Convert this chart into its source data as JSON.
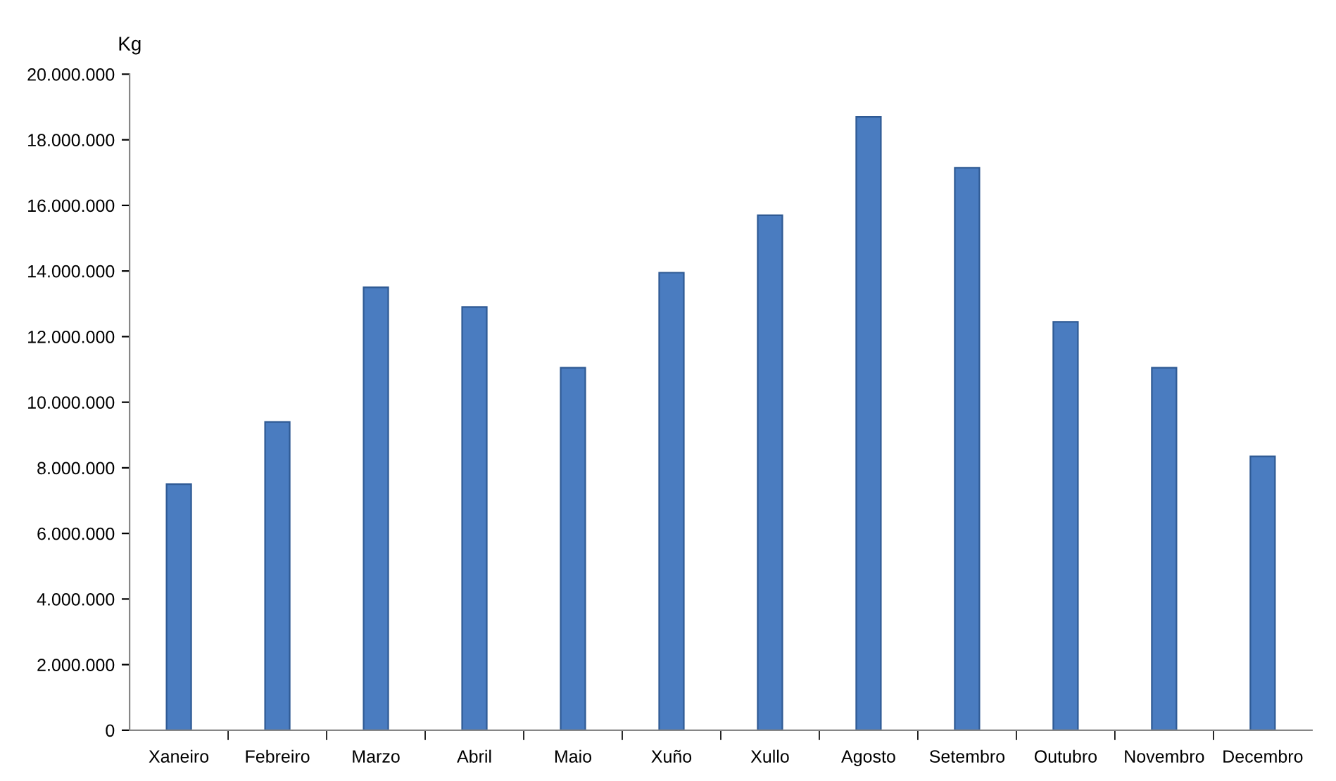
{
  "chart_data": {
    "type": "bar",
    "ylabel": "Kg",
    "categories": [
      "Xaneiro",
      "Febreiro",
      "Marzo",
      "Abril",
      "Maio",
      "Xuño",
      "Xullo",
      "Agosto",
      "Setembro",
      "Outubro",
      "Novembro",
      "Decembro"
    ],
    "values": [
      7500000,
      9400000,
      13500000,
      12900000,
      11050000,
      13950000,
      15700000,
      18700000,
      17150000,
      12450000,
      11050000,
      8350000
    ],
    "color": "#4a7cc0",
    "ylim": [
      0,
      20000000
    ],
    "yticks": [
      0,
      {
        "value": 2000000,
        "label": "2.000.000"
      },
      {
        "value": 4000000,
        "label": "4.000.000"
      },
      {
        "value": 6000000,
        "label": "6.000.000"
      },
      {
        "value": 8000000,
        "label": "8.000.000"
      },
      {
        "value": 10000000,
        "label": "10.000.000"
      },
      {
        "value": 12000000,
        "label": "12.000.000"
      },
      {
        "value": 14000000,
        "label": "14.000.000"
      },
      {
        "value": 16000000,
        "label": "16.000.000"
      },
      {
        "value": 18000000,
        "label": "18.000.000"
      },
      {
        "value": 20000000,
        "label": "20.000.000"
      }
    ],
    "grid": false,
    "legend": false
  }
}
